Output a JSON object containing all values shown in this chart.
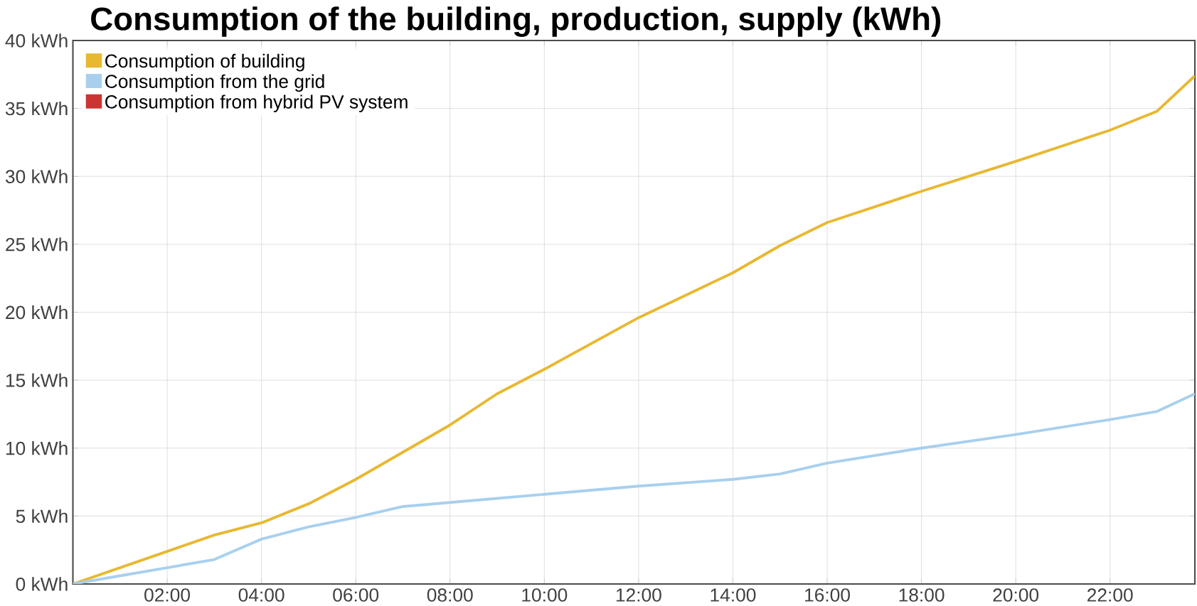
{
  "chart_data": {
    "type": "line",
    "title": "Consumption of the building, production, supply (kWh)",
    "x": [
      0,
      1,
      2,
      3,
      4,
      5,
      6,
      7,
      8,
      9,
      10,
      12,
      14,
      15,
      16,
      18,
      20,
      22,
      23,
      23.8
    ],
    "series": [
      {
        "name": "Consumption of building",
        "color": "#e8b830",
        "values": [
          0,
          1.2,
          2.4,
          3.6,
          4.5,
          5.9,
          7.7,
          9.7,
          11.7,
          14.0,
          15.8,
          19.6,
          22.9,
          24.9,
          26.6,
          28.9,
          31.1,
          33.4,
          34.8,
          37.4
        ]
      },
      {
        "name": "Consumption from the grid",
        "color": "#a8d0ee",
        "values": [
          0,
          0.6,
          1.2,
          1.8,
          3.3,
          4.2,
          4.9,
          5.7,
          6.0,
          6.3,
          6.6,
          7.2,
          7.7,
          8.1,
          8.9,
          10.0,
          11.0,
          12.1,
          12.7,
          14.0
        ]
      },
      {
        "name": "Consumption from hybrid PV system",
        "color": "#cc3333",
        "values": [
          null,
          null,
          null,
          null,
          null,
          null,
          null,
          null,
          null,
          null,
          null,
          null,
          null,
          null,
          null,
          null,
          null,
          null,
          null,
          null
        ]
      }
    ],
    "xlim": [
      0,
      23.8
    ],
    "xticks": [
      {
        "value": 2,
        "label": "02:00"
      },
      {
        "value": 4,
        "label": "04:00"
      },
      {
        "value": 6,
        "label": "06:00"
      },
      {
        "value": 8,
        "label": "08:00"
      },
      {
        "value": 10,
        "label": "10:00"
      },
      {
        "value": 12,
        "label": "12:00"
      },
      {
        "value": 14,
        "label": "14:00"
      },
      {
        "value": 16,
        "label": "16:00"
      },
      {
        "value": 18,
        "label": "18:00"
      },
      {
        "value": 20,
        "label": "20:00"
      },
      {
        "value": 22,
        "label": "22:00"
      }
    ],
    "ylim": [
      0,
      40
    ],
    "yticks": [
      {
        "value": 0,
        "label": "0 kWh"
      },
      {
        "value": 5,
        "label": "5 kWh"
      },
      {
        "value": 10,
        "label": "10 kWh"
      },
      {
        "value": 15,
        "label": "15 kWh"
      },
      {
        "value": 20,
        "label": "20 kWh"
      },
      {
        "value": 25,
        "label": "25 kWh"
      },
      {
        "value": 30,
        "label": "30 kWh"
      },
      {
        "value": 35,
        "label": "35 kWh"
      },
      {
        "value": 40,
        "label": "40 kWh"
      }
    ],
    "grid": true,
    "legend": "top left",
    "marker": "none",
    "line_style": "solid"
  }
}
